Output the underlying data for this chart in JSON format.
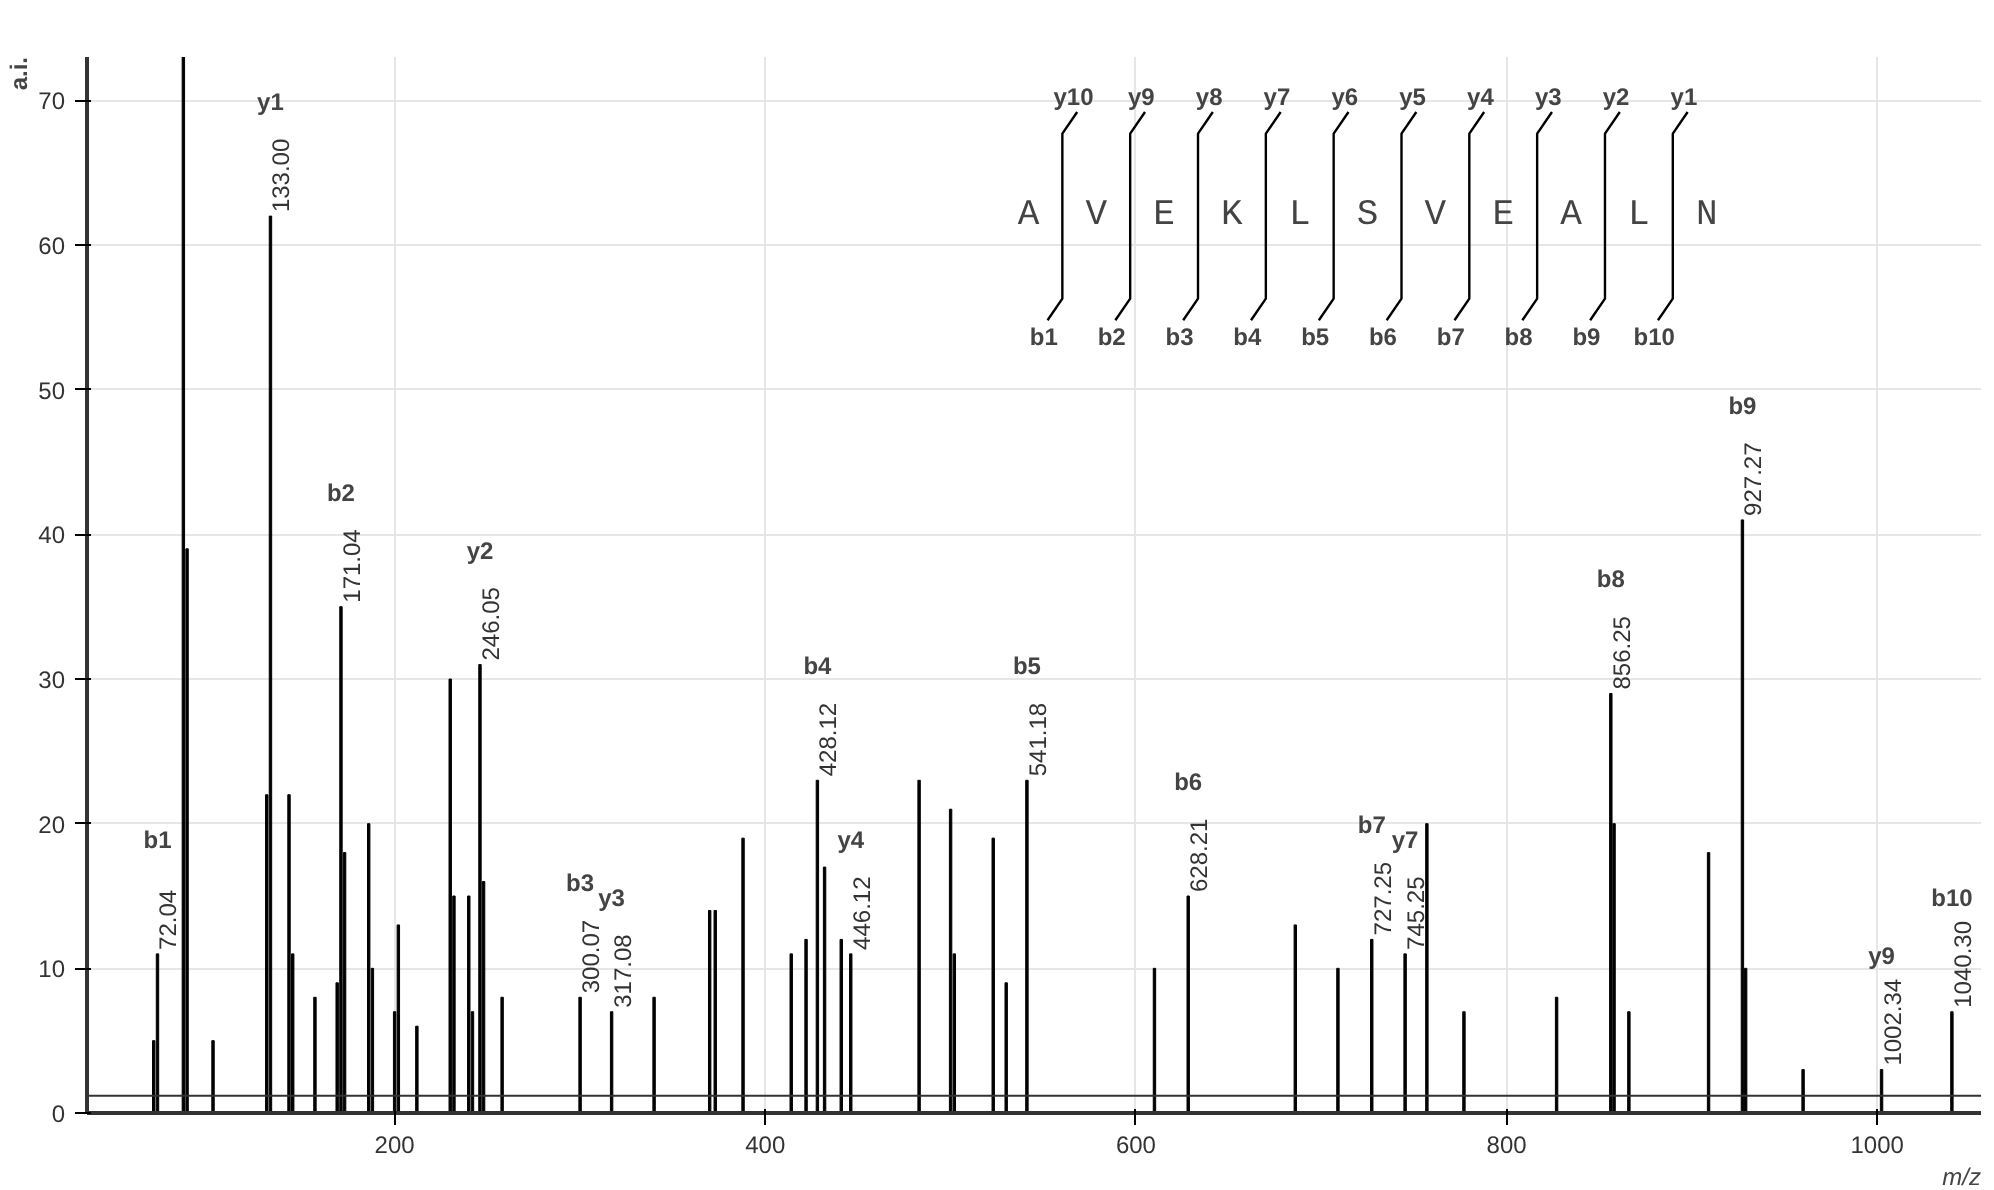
{
  "chart_data": {
    "type": "bar",
    "xlabel": "m/z",
    "ylabel": "a.i.",
    "xlim": [
      34,
      1056
    ],
    "ylim": [
      0,
      73
    ],
    "xticks": [
      200,
      400,
      600,
      800,
      1000
    ],
    "yticks": [
      0,
      10,
      20,
      30,
      40,
      50,
      60,
      70
    ],
    "grid": true,
    "series": [
      {
        "color": "#000000",
        "x": [
          70,
          72.04,
          86,
          88,
          102,
          131,
          133.0,
          143,
          145,
          157,
          169,
          171.04,
          173,
          186,
          188,
          200,
          202,
          212,
          230,
          232,
          240,
          242,
          246.05,
          248,
          258,
          300.07,
          317.08,
          340,
          370,
          373,
          388,
          414,
          422,
          428.12,
          432,
          441,
          446.12,
          483,
          500,
          502,
          523,
          530,
          541.18,
          610,
          628.21,
          686,
          709,
          727.25,
          745.25,
          757,
          777,
          827,
          856.25,
          858,
          866,
          909,
          927.27,
          929,
          960,
          1002.34,
          1040.3
        ],
        "values": [
          5,
          11,
          73,
          39,
          5,
          22,
          62,
          22,
          11,
          8,
          9,
          35,
          18,
          20,
          10,
          7,
          13,
          6,
          30,
          15,
          15,
          7,
          31,
          16,
          8,
          8,
          7,
          8,
          14,
          14,
          19,
          11,
          12,
          23,
          17,
          12,
          11,
          23,
          21,
          11,
          19,
          9,
          23,
          10,
          15,
          13,
          10,
          12,
          11,
          20,
          7,
          8,
          29,
          20,
          7,
          18,
          41,
          10,
          3,
          3,
          7
        ]
      }
    ],
    "ref_lines": [
      {
        "axis": "y",
        "value": 1.2
      }
    ],
    "annotations": [
      "A",
      "V",
      "E",
      "K",
      "L",
      "S",
      "V",
      "E",
      "A",
      "L",
      "N",
      "y10",
      "y9",
      "y8",
      "y7",
      "y6",
      "y5",
      "y4",
      "y3",
      "y2",
      "y1",
      "b1",
      "b2",
      "b3",
      "b4",
      "b5",
      "b6",
      "b7",
      "b8",
      "b9",
      "b10",
      "b1",
      "y1",
      "b2",
      "y2",
      "b3",
      "y3",
      "b4",
      "y4",
      "b5",
      "b6",
      "b7",
      "y7",
      "b8",
      "b9",
      "y9",
      "b10",
      {
        "text": "72.04",
        "x": 72.04,
        "y": 11
      },
      {
        "text": "133.00",
        "x": 133.0,
        "y": 62
      },
      {
        "text": "171.04",
        "x": 171.04,
        "y": 35
      },
      {
        "text": "246.05",
        "x": 246.05,
        "y": 31
      },
      {
        "text": "300.07",
        "x": 300.07,
        "y": 8
      },
      {
        "text": "317.08",
        "x": 317.08,
        "y": 7
      },
      {
        "text": "428.12",
        "x": 428.12,
        "y": 23
      },
      {
        "text": "446.12",
        "x": 446.12,
        "y": 11
      },
      {
        "text": "541.18",
        "x": 541.18,
        "y": 23
      },
      {
        "text": "628.21",
        "x": 628.21,
        "y": 15
      },
      {
        "text": "727.25",
        "x": 727.25,
        "y": 12
      },
      {
        "text": "745.25",
        "x": 745.25,
        "y": 11
      },
      {
        "text": "856.25",
        "x": 856.25,
        "y": 29
      },
      {
        "text": "927.27",
        "x": 927.27,
        "y": 41
      },
      {
        "text": "1002.34",
        "x": 1002.34,
        "y": 3
      },
      {
        "text": "1040.30",
        "x": 1040.3,
        "y": 7
      }
    ]
  }
}
